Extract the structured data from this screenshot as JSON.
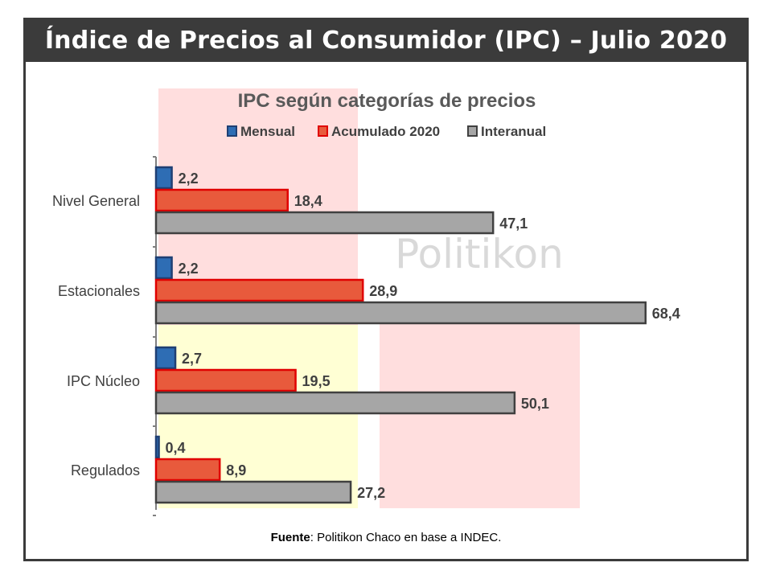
{
  "header": {
    "title": "Índice de Precios al Consumidor (IPC) – Julio 2020"
  },
  "watermark": "Politikon",
  "source": {
    "label": "Fuente",
    "text": ": Politikon Chaco en base a INDEC."
  },
  "colors": {
    "header_bg": "#3b3b3b",
    "mensual": "#2e6db4",
    "acumulado": "#e85a3c",
    "interanual": "#a6a6a6",
    "band_pink": "#ffdede",
    "band_yellow": "#ffffd4"
  },
  "chart_data": {
    "type": "bar",
    "orientation": "horizontal",
    "title": "IPC según categorías de precios",
    "categories": [
      "Nivel General",
      "Estacionales",
      "IPC Núcleo",
      "Regulados"
    ],
    "series": [
      {
        "name": "Mensual",
        "values": [
          2.2,
          2.2,
          2.7,
          0.4
        ],
        "labels": [
          "2,2",
          "2,2",
          "2,7",
          "0,4"
        ]
      },
      {
        "name": "Acumulado 2020",
        "values": [
          18.4,
          28.9,
          19.5,
          8.9
        ],
        "labels": [
          "18,4",
          "28,9",
          "19,5",
          "8,9"
        ]
      },
      {
        "name": "Interanual",
        "values": [
          47.1,
          68.4,
          50.1,
          27.2
        ],
        "labels": [
          "47,1",
          "68,4",
          "50,1",
          "27,2"
        ]
      }
    ],
    "xlim": [
      0,
      70
    ],
    "legend": "top",
    "grid": false
  }
}
